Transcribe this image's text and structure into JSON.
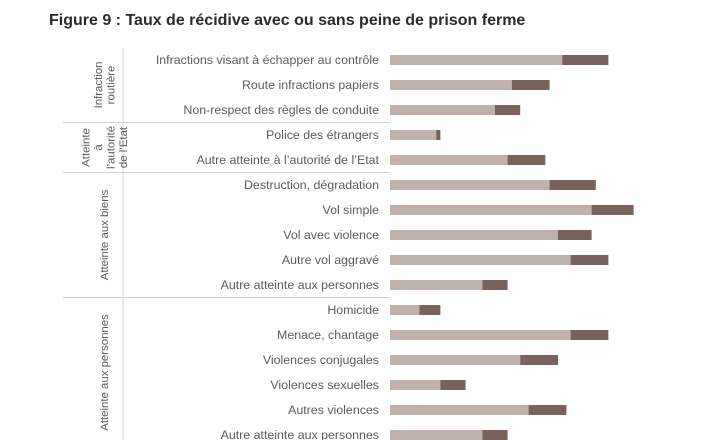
{
  "title": "Figure 9 : Taux de récidive avec ou sans peine de prison ferme",
  "chart_data": {
    "type": "bar",
    "orientation": "horizontal",
    "stacked": true,
    "categories": [
      "Infractions visant à échapper au contrôle",
      "Route infractions papiers",
      "Non-respect des règles de conduite",
      "Police des étrangers",
      "Autre atteinte à l’autorité de l’Etat",
      "Destruction, dégradation",
      "Vol simple",
      "Vol avec violence",
      "Autre vol aggravé",
      "Autre atteinte aux personnes",
      "Homicide",
      "Menace, chantage",
      "Violences conjugales",
      "Violences sexuelles",
      "Autres violences",
      "Autre atteinte aux personnes"
    ],
    "groups": [
      {
        "label_lines": [
          "Infraction",
          "routière"
        ],
        "count": 3
      },
      {
        "label_lines": [
          "Atteinte",
          "à",
          "l’autorité",
          "de l’Etat"
        ],
        "count": 2
      },
      {
        "label_lines": [
          "Atteinte aux biens"
        ],
        "count": 5
      },
      {
        "label_lines": [
          "Atteinte aux personnes"
        ],
        "count": 6
      }
    ],
    "series": [
      {
        "values": [
          41,
          29,
          25,
          11,
          28,
          38,
          48,
          40,
          43,
          22,
          7,
          43,
          31,
          12,
          33,
          22
        ]
      },
      {
        "values": [
          11,
          9,
          6,
          1,
          9,
          11,
          10,
          8,
          9,
          6,
          5,
          9,
          9,
          6,
          9,
          6
        ]
      }
    ],
    "colors": [
      "#bfb1ab",
      "#7a625c"
    ],
    "xlim": [
      0,
      100
    ]
  }
}
